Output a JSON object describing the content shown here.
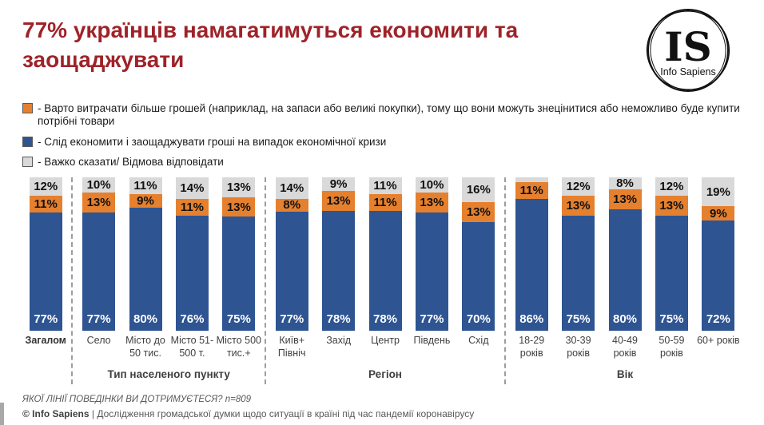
{
  "header": {
    "title": "77% українців намагатимуться економити та\nзаощаджувати"
  },
  "logo": {
    "monogram": "IS",
    "name": "Info Sapiens"
  },
  "legend": {
    "swatch_border": "#595959",
    "items": [
      {
        "color": "#e5802e",
        "label": "- Варто витрачати більше грошей (наприклад, на запаси або великі покупки), тому що вони можуть знецінитися або неможливо буде купити потрібні товари"
      },
      {
        "color": "#2e5492",
        "label": "- Слід економити і заощаджувати гроші на випадок економічної кризи"
      },
      {
        "color": "#d9d9d9",
        "label": "- Важко сказати/ Відмова відповідати"
      }
    ]
  },
  "chart_data": {
    "type": "bar",
    "subtype": "stacked-vertical",
    "unit": "%",
    "grid": false,
    "stack_order_top_to_bottom": [
      "dont_know",
      "spend_more",
      "save"
    ],
    "series_names": {
      "spend_more": "Варто витрачати більше грошей",
      "save": "Слід економити і заощаджувати гроші",
      "dont_know": "Важко сказати/ Відмова відповідати"
    },
    "colors": {
      "spend_more": "#e5802e",
      "save": "#2e5492",
      "dont_know": "#d9d9d9"
    },
    "groups": [
      {
        "label": "",
        "bars": [
          {
            "category": "Загалом",
            "emphasis": true,
            "dont_know": 12,
            "spend_more": 11,
            "save": 77
          }
        ]
      },
      {
        "label": "Тип населеного пункту",
        "bars": [
          {
            "category": "Село",
            "dont_know": 10,
            "spend_more": 13,
            "save": 77
          },
          {
            "category": "Місто до 50 тис.",
            "dont_know": 11,
            "spend_more": 9,
            "save": 80
          },
          {
            "category": "Місто 51-500 т.",
            "dont_know": 14,
            "spend_more": 11,
            "save": 76
          },
          {
            "category": "Місто 500 тис.+",
            "dont_know": 13,
            "spend_more": 13,
            "save": 75
          }
        ]
      },
      {
        "label": "Регіон",
        "bars": [
          {
            "category": "Київ+ Північ",
            "dont_know": 14,
            "spend_more": 8,
            "save": 77
          },
          {
            "category": "Захід",
            "dont_know": 9,
            "spend_more": 13,
            "save": 78
          },
          {
            "category": "Центр",
            "dont_know": 11,
            "spend_more": 11,
            "save": 78
          },
          {
            "category": "Південь",
            "dont_know": 10,
            "spend_more": 13,
            "save": 77
          },
          {
            "category": "Схід",
            "dont_know": 16,
            "spend_more": 13,
            "save": 70
          }
        ]
      },
      {
        "label": "Вік",
        "bars": [
          {
            "category": "18-29 років",
            "dont_know": 3,
            "dont_know_label_hidden": true,
            "spend_more": 11,
            "save": 86
          },
          {
            "category": "30-39 років",
            "dont_know": 12,
            "spend_more": 13,
            "save": 75
          },
          {
            "category": "40-49 років",
            "dont_know": 8,
            "spend_more": 13,
            "save": 80
          },
          {
            "category": "50-59 років",
            "dont_know": 12,
            "spend_more": 13,
            "save": 75
          },
          {
            "category": "60+ років",
            "dont_know": 19,
            "spend_more": 9,
            "save": 72
          }
        ]
      }
    ]
  },
  "footer": {
    "question": "ЯКОЇ ЛІНІЇ ПОВЕДІНКИ ВИ ДОТРИМУЄТЕСЯ? n=809",
    "copyright_brand": "© Info Sapiens",
    "copyright_rest": " | Дослідження громадської думки щодо ситуації в країні під час пандемії коронавірусу"
  }
}
